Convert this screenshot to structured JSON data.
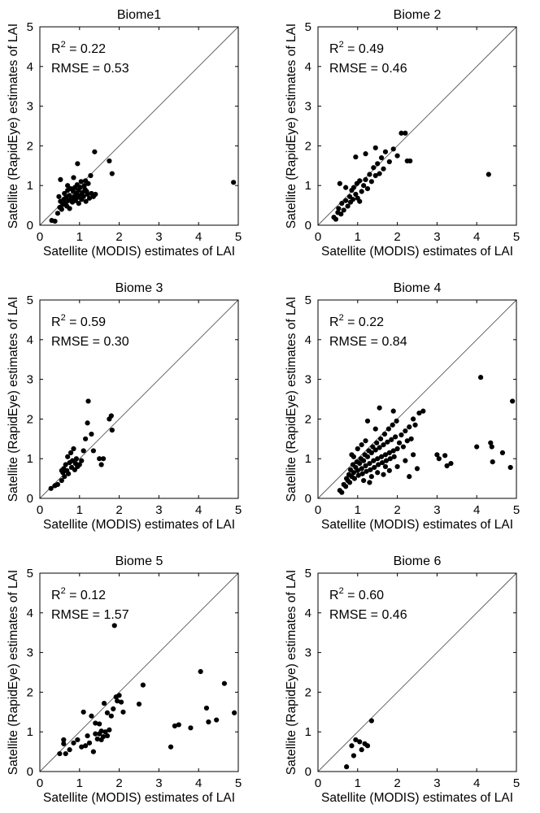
{
  "figure": {
    "description_label": "Satellite LAI comparison by biome"
  },
  "chart_data": [
    {
      "type": "scatter",
      "title": "Biome1",
      "xlabel": "Satellite (MODIS) estimates of LAI",
      "ylabel": "Satellite (RapidEye) estimates of LAI",
      "xlim": [
        0,
        5
      ],
      "ylim": [
        0,
        5
      ],
      "xticks": [
        "0",
        "1",
        "2",
        "3",
        "4",
        "5"
      ],
      "yticks": [
        "0",
        "1",
        "2",
        "3",
        "4",
        "5"
      ],
      "r2_label": "R",
      "r2_sup": "2",
      "r2_value": "= 0.22",
      "rmse_text": "RMSE = 0.53",
      "reference_line": "1:1",
      "points": [
        [
          0.3,
          0.12
        ],
        [
          0.38,
          0.1
        ],
        [
          0.45,
          0.3
        ],
        [
          0.5,
          0.45
        ],
        [
          0.52,
          0.6
        ],
        [
          0.48,
          0.72
        ],
        [
          0.55,
          0.4
        ],
        [
          0.58,
          0.52
        ],
        [
          0.6,
          0.65
        ],
        [
          0.62,
          0.8
        ],
        [
          0.65,
          0.55
        ],
        [
          0.66,
          0.7
        ],
        [
          0.68,
          0.48
        ],
        [
          0.7,
          0.88
        ],
        [
          0.72,
          0.62
        ],
        [
          0.74,
          0.75
        ],
        [
          0.75,
          0.42
        ],
        [
          0.78,
          0.92
        ],
        [
          0.8,
          0.68
        ],
        [
          0.82,
          0.58
        ],
        [
          0.84,
          0.85
        ],
        [
          0.86,
          0.72
        ],
        [
          0.88,
          0.95
        ],
        [
          0.9,
          0.62
        ],
        [
          0.92,
          0.8
        ],
        [
          0.94,
          1.02
        ],
        [
          0.95,
          0.7
        ],
        [
          0.97,
          0.88
        ],
        [
          0.98,
          0.55
        ],
        [
          1.0,
          0.75
        ],
        [
          1.02,
          0.95
        ],
        [
          1.04,
          1.1
        ],
        [
          1.05,
          0.65
        ],
        [
          1.07,
          0.82
        ],
        [
          1.1,
          0.72
        ],
        [
          1.12,
          1.0
        ],
        [
          1.14,
          0.9
        ],
        [
          1.16,
          0.6
        ],
        [
          1.18,
          0.85
        ],
        [
          1.2,
          0.78
        ],
        [
          1.22,
          1.05
        ],
        [
          1.25,
          0.68
        ],
        [
          1.28,
          1.25
        ],
        [
          1.3,
          0.8
        ],
        [
          1.35,
          0.72
        ],
        [
          1.38,
          1.85
        ],
        [
          1.4,
          0.78
        ],
        [
          0.95,
          1.55
        ],
        [
          0.52,
          1.15
        ],
        [
          0.7,
          1.0
        ],
        [
          0.85,
          1.2
        ],
        [
          1.15,
          1.12
        ],
        [
          1.75,
          1.62
        ],
        [
          1.82,
          1.3
        ],
        [
          4.88,
          1.08
        ]
      ]
    },
    {
      "type": "scatter",
      "title": "Biome 2",
      "xlabel": "Satellite (MODIS) estimates of LAI",
      "ylabel": "Satellite (RapidEye) estimates of LAI",
      "xlim": [
        0,
        5
      ],
      "ylim": [
        0,
        5
      ],
      "xticks": [
        "0",
        "1",
        "2",
        "3",
        "4",
        "5"
      ],
      "yticks": [
        "0",
        "1",
        "2",
        "3",
        "4",
        "5"
      ],
      "r2_label": "R",
      "r2_sup": "2",
      "r2_value": "= 0.49",
      "rmse_text": "RMSE = 0.46",
      "reference_line": "1:1",
      "points": [
        [
          0.4,
          0.2
        ],
        [
          0.45,
          0.15
        ],
        [
          0.5,
          0.32
        ],
        [
          0.52,
          0.42
        ],
        [
          0.58,
          0.28
        ],
        [
          0.6,
          0.55
        ],
        [
          0.65,
          0.38
        ],
        [
          0.7,
          0.62
        ],
        [
          0.75,
          0.48
        ],
        [
          0.8,
          0.72
        ],
        [
          0.82,
          0.58
        ],
        [
          0.85,
          0.88
        ],
        [
          0.88,
          0.65
        ],
        [
          0.9,
          0.95
        ],
        [
          0.95,
          0.78
        ],
        [
          0.98,
          1.05
        ],
        [
          1.0,
          0.68
        ],
        [
          1.05,
          1.12
        ],
        [
          1.1,
          0.85
        ],
        [
          1.15,
          1.0
        ],
        [
          1.2,
          1.15
        ],
        [
          1.25,
          0.92
        ],
        [
          1.3,
          1.28
        ],
        [
          1.35,
          1.1
        ],
        [
          1.4,
          1.45
        ],
        [
          1.45,
          1.25
        ],
        [
          1.5,
          1.55
        ],
        [
          1.55,
          1.3
        ],
        [
          1.6,
          1.7
        ],
        [
          1.65,
          1.42
        ],
        [
          1.7,
          1.85
        ],
        [
          1.8,
          1.6
        ],
        [
          1.9,
          1.92
        ],
        [
          2.0,
          1.75
        ],
        [
          2.1,
          2.32
        ],
        [
          2.2,
          2.32
        ],
        [
          2.25,
          1.62
        ],
        [
          2.32,
          1.62
        ],
        [
          0.55,
          1.05
        ],
        [
          0.95,
          1.72
        ],
        [
          1.45,
          1.95
        ],
        [
          1.2,
          1.8
        ],
        [
          0.7,
          0.95
        ],
        [
          1.05,
          0.6
        ],
        [
          4.3,
          1.28
        ]
      ]
    },
    {
      "type": "scatter",
      "title": "Biome 3",
      "xlabel": "Satellite (MODIS) estimates of LAI",
      "ylabel": "Satellite (RapidEye) estimates of LAI",
      "xlim": [
        0,
        5
      ],
      "ylim": [
        0,
        5
      ],
      "xticks": [
        "0",
        "1",
        "2",
        "3",
        "4",
        "5"
      ],
      "yticks": [
        "0",
        "1",
        "2",
        "3",
        "4",
        "5"
      ],
      "r2_label": "R",
      "r2_sup": "2",
      "r2_value": "= 0.59",
      "rmse_text": "RMSE = 0.30",
      "reference_line": "1:1",
      "points": [
        [
          0.28,
          0.25
        ],
        [
          0.38,
          0.32
        ],
        [
          0.45,
          0.35
        ],
        [
          0.55,
          0.45
        ],
        [
          0.58,
          0.65
        ],
        [
          0.6,
          0.75
        ],
        [
          0.62,
          0.55
        ],
        [
          0.65,
          0.85
        ],
        [
          0.68,
          0.7
        ],
        [
          0.7,
          1.05
        ],
        [
          0.72,
          0.62
        ],
        [
          0.75,
          0.9
        ],
        [
          0.78,
          1.15
        ],
        [
          0.8,
          0.78
        ],
        [
          0.82,
          0.95
        ],
        [
          0.85,
          1.25
        ],
        [
          0.88,
          0.72
        ],
        [
          0.9,
          0.88
        ],
        [
          0.92,
          1.0
        ],
        [
          0.95,
          0.8
        ],
        [
          1.0,
          0.85
        ],
        [
          1.05,
          0.95
        ],
        [
          1.1,
          1.2
        ],
        [
          1.15,
          1.5
        ],
        [
          1.2,
          1.9
        ],
        [
          1.22,
          2.45
        ],
        [
          1.3,
          1.62
        ],
        [
          1.35,
          1.2
        ],
        [
          1.5,
          1.0
        ],
        [
          1.55,
          0.85
        ],
        [
          1.6,
          1.0
        ],
        [
          1.75,
          2.0
        ],
        [
          1.8,
          2.08
        ],
        [
          1.82,
          1.72
        ],
        [
          0.55,
          0.7
        ]
      ]
    },
    {
      "type": "scatter",
      "title": "Biome 4",
      "xlabel": "Satellite (MODIS) estimates of LAI",
      "ylabel": "Satellite (RapidEye) estimates of LAI",
      "xlim": [
        0,
        5
      ],
      "ylim": [
        0,
        5
      ],
      "xticks": [
        "0",
        "1",
        "2",
        "3",
        "4",
        "5"
      ],
      "yticks": [
        "0",
        "1",
        "2",
        "3",
        "4",
        "5"
      ],
      "r2_label": "R",
      "r2_sup": "2",
      "r2_value": "= 0.22",
      "rmse_text": "RMSE = 0.84",
      "reference_line": "1:1",
      "points": [
        [
          0.55,
          0.2
        ],
        [
          0.6,
          0.15
        ],
        [
          0.65,
          0.35
        ],
        [
          0.7,
          0.3
        ],
        [
          0.72,
          0.5
        ],
        [
          0.75,
          0.45
        ],
        [
          0.78,
          0.6
        ],
        [
          0.8,
          0.4
        ],
        [
          0.82,
          0.72
        ],
        [
          0.85,
          0.55
        ],
        [
          0.88,
          0.85
        ],
        [
          0.9,
          0.65
        ],
        [
          0.92,
          0.5
        ],
        [
          0.95,
          0.78
        ],
        [
          0.98,
          0.92
        ],
        [
          1.0,
          0.7
        ],
        [
          1.02,
          0.58
        ],
        [
          1.05,
          0.88
        ],
        [
          1.08,
          1.0
        ],
        [
          1.1,
          0.75
        ],
        [
          1.12,
          0.62
        ],
        [
          1.15,
          0.95
        ],
        [
          1.18,
          1.1
        ],
        [
          1.2,
          0.82
        ],
        [
          1.22,
          0.68
        ],
        [
          1.25,
          1.05
        ],
        [
          1.28,
          1.2
        ],
        [
          1.3,
          0.88
        ],
        [
          1.32,
          0.72
        ],
        [
          1.35,
          1.15
        ],
        [
          1.38,
          1.3
        ],
        [
          1.4,
          0.95
        ],
        [
          1.42,
          0.78
        ],
        [
          1.45,
          1.22
        ],
        [
          1.48,
          1.4
        ],
        [
          1.5,
          1.0
        ],
        [
          1.52,
          0.85
        ],
        [
          1.55,
          1.28
        ],
        [
          1.58,
          1.5
        ],
        [
          1.6,
          1.05
        ],
        [
          1.62,
          0.9
        ],
        [
          1.65,
          1.35
        ],
        [
          1.68,
          1.62
        ],
        [
          1.7,
          1.1
        ],
        [
          1.72,
          0.95
        ],
        [
          1.75,
          1.42
        ],
        [
          1.78,
          1.75
        ],
        [
          1.8,
          1.15
        ],
        [
          1.82,
          1.0
        ],
        [
          1.85,
          1.48
        ],
        [
          1.88,
          1.85
        ],
        [
          1.9,
          1.2
        ],
        [
          1.92,
          1.05
        ],
        [
          1.95,
          1.55
        ],
        [
          1.98,
          1.95
        ],
        [
          2.0,
          1.25
        ],
        [
          2.05,
          1.4
        ],
        [
          2.1,
          1.6
        ],
        [
          2.15,
          1.3
        ],
        [
          2.2,
          1.7
        ],
        [
          2.25,
          1.45
        ],
        [
          2.3,
          1.8
        ],
        [
          2.35,
          1.5
        ],
        [
          2.4,
          2.0
        ],
        [
          2.45,
          1.85
        ],
        [
          2.55,
          2.15
        ],
        [
          2.65,
          2.2
        ],
        [
          2.5,
          0.75
        ],
        [
          2.3,
          0.55
        ],
        [
          1.0,
          1.25
        ],
        [
          1.2,
          1.45
        ],
        [
          1.45,
          1.75
        ],
        [
          1.55,
          2.28
        ],
        [
          1.9,
          2.2
        ],
        [
          1.25,
          1.95
        ],
        [
          0.9,
          1.05
        ],
        [
          1.1,
          1.35
        ],
        [
          1.35,
          0.55
        ],
        [
          1.65,
          0.6
        ],
        [
          2.0,
          0.8
        ],
        [
          1.8,
          0.7
        ],
        [
          2.2,
          0.95
        ],
        [
          2.4,
          1.1
        ],
        [
          0.85,
          1.1
        ],
        [
          1.15,
          0.45
        ],
        [
          1.3,
          0.4
        ],
        [
          1.5,
          0.65
        ],
        [
          1.7,
          0.8
        ],
        [
          3.0,
          1.1
        ],
        [
          3.05,
          1.0
        ],
        [
          3.2,
          1.08
        ],
        [
          3.25,
          0.82
        ],
        [
          3.35,
          0.88
        ],
        [
          4.0,
          1.3
        ],
        [
          4.1,
          3.05
        ],
        [
          4.35,
          1.4
        ],
        [
          4.38,
          1.3
        ],
        [
          4.4,
          0.92
        ],
        [
          4.65,
          1.15
        ],
        [
          4.85,
          0.78
        ],
        [
          4.9,
          2.45
        ]
      ]
    },
    {
      "type": "scatter",
      "title": "Biome 5",
      "xlabel": "Satellite (MODIS) estimates of LAI",
      "ylabel": "Satellite (RapidEye) estimates of LAI",
      "xlim": [
        0,
        5
      ],
      "ylim": [
        0,
        5
      ],
      "xticks": [
        "0",
        "1",
        "2",
        "3",
        "4",
        "5"
      ],
      "yticks": [
        "0",
        "1",
        "2",
        "3",
        "4",
        "5"
      ],
      "r2_label": "R",
      "r2_sup": "2",
      "r2_value": "= 0.12",
      "rmse_text": "RMSE = 1.57",
      "reference_line": "1:1",
      "points": [
        [
          0.5,
          0.45
        ],
        [
          0.6,
          0.8
        ],
        [
          0.65,
          0.45
        ],
        [
          0.75,
          0.55
        ],
        [
          0.85,
          0.72
        ],
        [
          0.95,
          0.8
        ],
        [
          1.05,
          0.62
        ],
        [
          1.1,
          1.5
        ],
        [
          1.15,
          0.65
        ],
        [
          1.2,
          0.9
        ],
        [
          1.25,
          0.72
        ],
        [
          1.3,
          1.4
        ],
        [
          1.35,
          0.5
        ],
        [
          1.4,
          0.95
        ],
        [
          1.45,
          0.82
        ],
        [
          1.5,
          1.2
        ],
        [
          1.55,
          1.02
        ],
        [
          1.6,
          0.88
        ],
        [
          1.62,
          1.72
        ],
        [
          1.65,
          1.0
        ],
        [
          1.7,
          1.48
        ],
        [
          1.75,
          1.05
        ],
        [
          1.8,
          1.4
        ],
        [
          1.85,
          1.58
        ],
        [
          1.88,
          3.68
        ],
        [
          1.92,
          1.88
        ],
        [
          1.95,
          1.78
        ],
        [
          2.0,
          1.92
        ],
        [
          2.05,
          1.75
        ],
        [
          2.1,
          1.5
        ],
        [
          2.5,
          1.7
        ],
        [
          2.6,
          2.18
        ],
        [
          1.5,
          0.95
        ],
        [
          1.7,
          0.9
        ],
        [
          1.55,
          0.8
        ],
        [
          3.3,
          0.62
        ],
        [
          3.4,
          1.15
        ],
        [
          3.5,
          1.18
        ],
        [
          3.8,
          1.1
        ],
        [
          4.05,
          2.52
        ],
        [
          4.2,
          1.6
        ],
        [
          4.25,
          1.25
        ],
        [
          4.45,
          1.3
        ],
        [
          4.65,
          2.22
        ],
        [
          4.9,
          1.48
        ],
        [
          1.4,
          1.22
        ],
        [
          0.6,
          0.7
        ]
      ]
    },
    {
      "type": "scatter",
      "title": "Biome 6",
      "xlabel": "Satellite (MODIS) estimates of LAI",
      "ylabel": "Satellite (RapidEye) estimates of LAI",
      "xlim": [
        0,
        5
      ],
      "ylim": [
        0,
        5
      ],
      "xticks": [
        "0",
        "1",
        "2",
        "3",
        "4",
        "5"
      ],
      "yticks": [
        "0",
        "1",
        "2",
        "3",
        "4",
        "5"
      ],
      "r2_label": "R",
      "r2_sup": "2",
      "r2_value": "= 0.60",
      "rmse_text": "RMSE = 0.46",
      "reference_line": "1:1",
      "points": [
        [
          0.72,
          0.12
        ],
        [
          0.85,
          0.65
        ],
        [
          0.9,
          0.4
        ],
        [
          0.95,
          0.8
        ],
        [
          1.05,
          0.75
        ],
        [
          1.1,
          0.55
        ],
        [
          1.18,
          0.7
        ],
        [
          1.25,
          0.65
        ],
        [
          1.35,
          1.28
        ]
      ]
    }
  ]
}
